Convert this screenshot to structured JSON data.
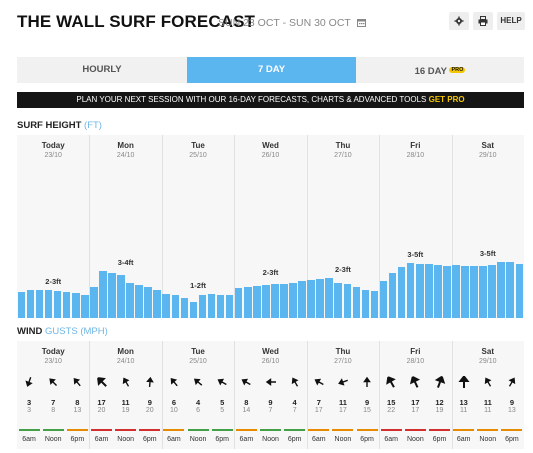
{
  "header": {
    "title": "THE WALL SURF FORECAST",
    "date_range": "SUN 23 OCT - SUN 30 OCT",
    "icons": [
      "calendar-icon",
      "gear-icon",
      "printer-icon"
    ],
    "help_label": "HELP"
  },
  "tabs": [
    {
      "label": "HOURLY",
      "active": false
    },
    {
      "label": "7 DAY",
      "active": true
    },
    {
      "label": "16 DAY",
      "active": false,
      "badge": "PRO"
    }
  ],
  "banner": {
    "text": "PLAN YOUR NEXT SESSION WITH OUR 16-DAY FORECASTS, CHARTS & ADVANCED TOOLS",
    "cta": "GET PRO"
  },
  "surf": {
    "title": "SURF HEIGHT",
    "unit": "(FT)",
    "days": [
      {
        "name": "Today",
        "date": "23/10",
        "range": "2-3ft"
      },
      {
        "name": "Mon",
        "date": "24/10",
        "range": "3-4ft"
      },
      {
        "name": "Tue",
        "date": "25/10",
        "range": "1-2ft"
      },
      {
        "name": "Wed",
        "date": "26/10",
        "range": "2-3ft"
      },
      {
        "name": "Thu",
        "date": "27/10",
        "range": "2-3ft"
      },
      {
        "name": "Fri",
        "date": "28/10",
        "range": "3-5ft"
      },
      {
        "name": "Sat",
        "date": "29/10",
        "range": "3-5ft"
      }
    ],
    "heights_ft": [
      1.5,
      1.6,
      1.6,
      1.6,
      1.55,
      1.5,
      1.45,
      1.3,
      1.8,
      2.7,
      2.6,
      2.45,
      2.0,
      1.9,
      1.75,
      1.6,
      1.35,
      1.3,
      1.15,
      0.9,
      1.3,
      1.4,
      1.3,
      1.3,
      1.7,
      1.8,
      1.85,
      1.9,
      1.95,
      1.95,
      2.0,
      2.1,
      2.2,
      2.25,
      2.3,
      2.0,
      1.95,
      1.75,
      1.6,
      1.55,
      2.1,
      2.6,
      2.9,
      3.15,
      3.1,
      3.1,
      3.05,
      3.0,
      3.05,
      3.0,
      3.0,
      2.95,
      3.05,
      3.2,
      3.2,
      3.1
    ],
    "color": "#5bb5ef"
  },
  "wind": {
    "title": "WIND",
    "subtitle": "GUSTS",
    "unit": "(MPH)",
    "rows": [
      {
        "dir": 200,
        "wind": 3,
        "gust": 3,
        "rating": "#43a047"
      },
      {
        "dir": 315,
        "wind": 7,
        "gust": 8,
        "rating": "#43a047"
      },
      {
        "dir": 320,
        "wind": 8,
        "gust": 13,
        "rating": "#e68a00"
      },
      {
        "dir": 315,
        "wind": 17,
        "gust": 20,
        "rating": "#d32f2f"
      },
      {
        "dir": 330,
        "wind": 11,
        "gust": 19,
        "rating": "#d32f2f"
      },
      {
        "dir": 5,
        "wind": 9,
        "gust": 20,
        "rating": "#d32f2f"
      },
      {
        "dir": 320,
        "wind": 6,
        "gust": 10,
        "rating": "#e68a00"
      },
      {
        "dir": 310,
        "wind": 4,
        "gust": 6,
        "rating": "#43a047"
      },
      {
        "dir": 300,
        "wind": 5,
        "gust": 5,
        "rating": "#43a047"
      },
      {
        "dir": 300,
        "wind": 8,
        "gust": 14,
        "rating": "#e68a00"
      },
      {
        "dir": 270,
        "wind": 9,
        "gust": 7,
        "rating": "#43a047"
      },
      {
        "dir": 330,
        "wind": 4,
        "gust": 7,
        "rating": "#43a047"
      },
      {
        "dir": 300,
        "wind": 7,
        "gust": 17,
        "rating": "#e68a00"
      },
      {
        "dir": 250,
        "wind": 11,
        "gust": 17,
        "rating": "#e68a00"
      },
      {
        "dir": 0,
        "wind": 9,
        "gust": 15,
        "rating": "#e68a00"
      },
      {
        "dir": 330,
        "wind": 15,
        "gust": 22,
        "rating": "#d32f2f"
      },
      {
        "dir": 335,
        "wind": 17,
        "gust": 17,
        "rating": "#d32f2f"
      },
      {
        "dir": 20,
        "wind": 12,
        "gust": 19,
        "rating": "#d32f2f"
      },
      {
        "dir": 0,
        "wind": 13,
        "gust": 11,
        "rating": "#e68a00"
      },
      {
        "dir": 330,
        "wind": 11,
        "gust": 11,
        "rating": "#e68a00"
      },
      {
        "dir": 30,
        "wind": 9,
        "gust": 13,
        "rating": "#e68a00"
      }
    ],
    "times": [
      "6am",
      "Noon",
      "6pm"
    ]
  }
}
